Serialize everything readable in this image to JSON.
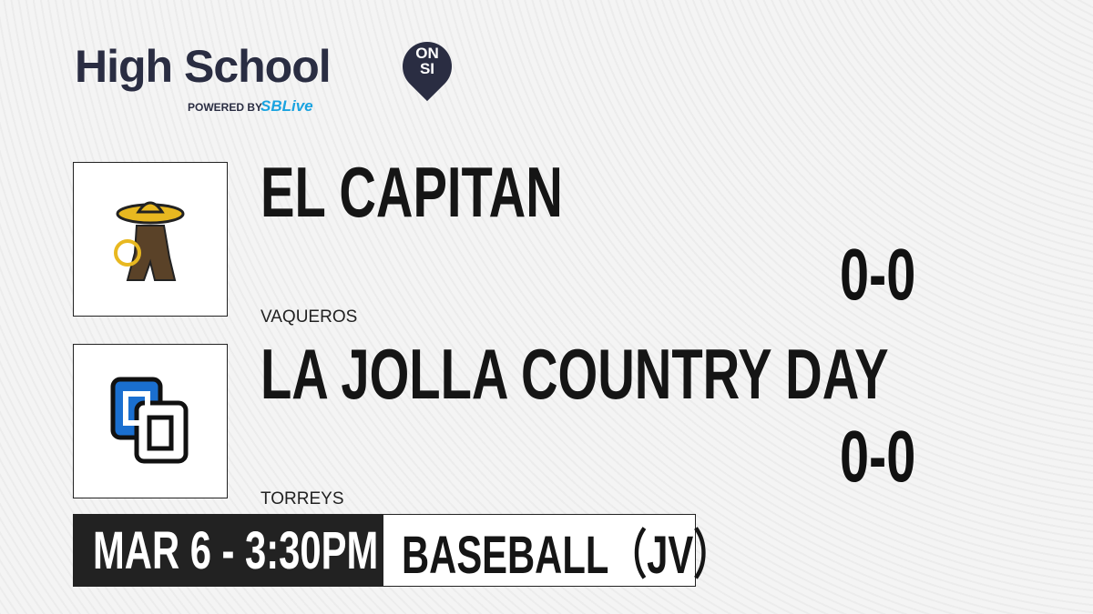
{
  "brand": {
    "title": "High School",
    "badge_top": "ON",
    "badge_bottom": "SI",
    "powered_by": "POWERED BY",
    "partner": "SBLive",
    "color": "#2a2d42",
    "partner_color": "#1aa3e0"
  },
  "teams": [
    {
      "name": "EL CAPITAN",
      "mascot": "VAQUEROS",
      "score": "0-0",
      "logo_icon": "vaquero-mascot-icon"
    },
    {
      "name": "LA JOLLA COUNTRY DAY",
      "mascot": "TORREYS",
      "score": "0-0",
      "logo_icon": "cd-monogram-icon"
    }
  ],
  "game": {
    "datetime": "MAR 6 - 3:30PM",
    "sport": "BASEBALL（JV）"
  }
}
